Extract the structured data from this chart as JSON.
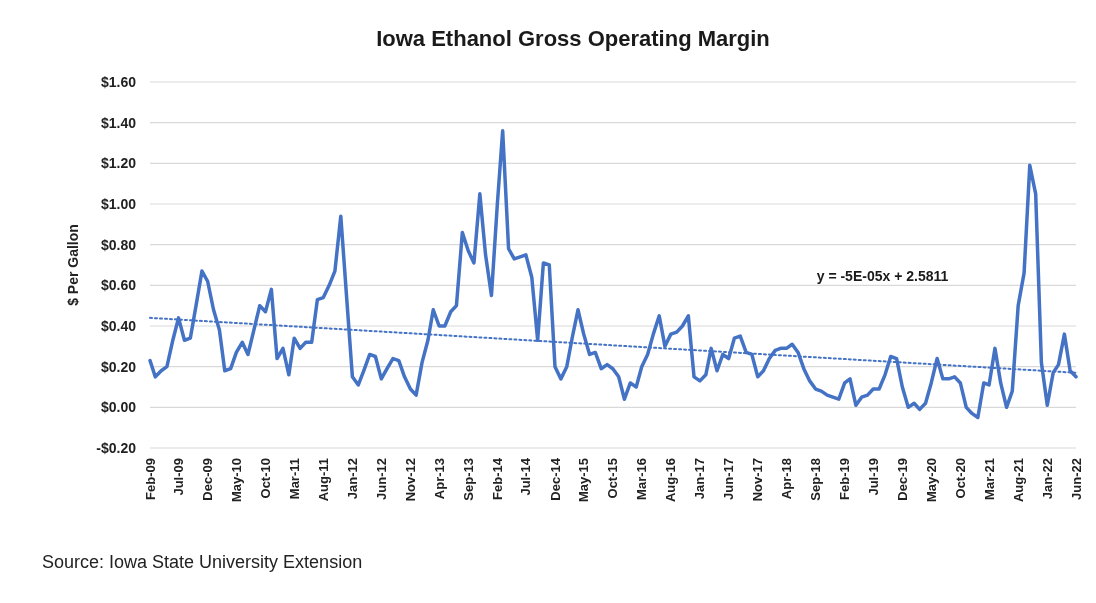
{
  "chart_data": {
    "type": "line",
    "title": "Iowa Ethanol Gross Operating Margin",
    "ylabel": "$ Per Gallon",
    "annotations": [
      "y = -5E-05x + 2.5811",
      "Source: Iowa State University Extension"
    ],
    "x": [
      "2009-02",
      "2009-03",
      "2009-04",
      "2009-05",
      "2009-06",
      "2009-07",
      "2009-08",
      "2009-09",
      "2009-10",
      "2009-11",
      "2009-12",
      "2010-01",
      "2010-02",
      "2010-03",
      "2010-04",
      "2010-05",
      "2010-06",
      "2010-07",
      "2010-08",
      "2010-09",
      "2010-10",
      "2010-11",
      "2010-12",
      "2011-01",
      "2011-02",
      "2011-03",
      "2011-04",
      "2011-05",
      "2011-06",
      "2011-07",
      "2011-08",
      "2011-09",
      "2011-10",
      "2011-11",
      "2011-12",
      "2012-01",
      "2012-02",
      "2012-03",
      "2012-04",
      "2012-05",
      "2012-06",
      "2012-07",
      "2012-08",
      "2012-09",
      "2012-10",
      "2012-11",
      "2012-12",
      "2013-01",
      "2013-02",
      "2013-03",
      "2013-04",
      "2013-05",
      "2013-06",
      "2013-07",
      "2013-08",
      "2013-09",
      "2013-10",
      "2013-11",
      "2013-12",
      "2014-01",
      "2014-02",
      "2014-03",
      "2014-04",
      "2014-05",
      "2014-06",
      "2014-07",
      "2014-08",
      "2014-09",
      "2014-10",
      "2014-11",
      "2014-12",
      "2015-01",
      "2015-02",
      "2015-03",
      "2015-04",
      "2015-05",
      "2015-06",
      "2015-07",
      "2015-08",
      "2015-09",
      "2015-10",
      "2015-11",
      "2015-12",
      "2016-01",
      "2016-02",
      "2016-03",
      "2016-04",
      "2016-05",
      "2016-06",
      "2016-07",
      "2016-08",
      "2016-09",
      "2016-10",
      "2016-11",
      "2016-12",
      "2017-01",
      "2017-02",
      "2017-03",
      "2017-04",
      "2017-05",
      "2017-06",
      "2017-07",
      "2017-08",
      "2017-09",
      "2017-10",
      "2017-11",
      "2017-12",
      "2018-01",
      "2018-02",
      "2018-03",
      "2018-04",
      "2018-05",
      "2018-06",
      "2018-07",
      "2018-08",
      "2018-09",
      "2018-10",
      "2018-11",
      "2018-12",
      "2019-01",
      "2019-02",
      "2019-03",
      "2019-04",
      "2019-05",
      "2019-06",
      "2019-07",
      "2019-08",
      "2019-09",
      "2019-10",
      "2019-11",
      "2019-12",
      "2020-01",
      "2020-02",
      "2020-03",
      "2020-04",
      "2020-05",
      "2020-06",
      "2020-07",
      "2020-08",
      "2020-09",
      "2020-10",
      "2020-11",
      "2020-12",
      "2021-01",
      "2021-02",
      "2021-03",
      "2021-04",
      "2021-05",
      "2021-06",
      "2021-07",
      "2021-08",
      "2021-09",
      "2021-10",
      "2021-11",
      "2021-12",
      "2022-01",
      "2022-02",
      "2022-03",
      "2022-04",
      "2022-05",
      "2022-06"
    ],
    "series": [
      {
        "color": "#4472c4",
        "values": [
          0.23,
          0.15,
          0.18,
          0.2,
          0.33,
          0.44,
          0.33,
          0.34,
          0.5,
          0.67,
          0.62,
          0.48,
          0.38,
          0.18,
          0.19,
          0.27,
          0.32,
          0.26,
          0.38,
          0.5,
          0.47,
          0.58,
          0.24,
          0.29,
          0.16,
          0.34,
          0.29,
          0.32,
          0.32,
          0.53,
          0.54,
          0.6,
          0.67,
          0.94,
          0.55,
          0.15,
          0.11,
          0.18,
          0.26,
          0.25,
          0.14,
          0.19,
          0.24,
          0.23,
          0.15,
          0.09,
          0.06,
          0.22,
          0.33,
          0.48,
          0.4,
          0.4,
          0.47,
          0.5,
          0.86,
          0.77,
          0.71,
          1.05,
          0.75,
          0.55,
          1.0,
          1.36,
          0.78,
          0.73,
          0.74,
          0.75,
          0.64,
          0.33,
          0.71,
          0.7,
          0.2,
          0.14,
          0.2,
          0.34,
          0.48,
          0.36,
          0.26,
          0.27,
          0.19,
          0.21,
          0.19,
          0.15,
          0.04,
          0.12,
          0.1,
          0.2,
          0.26,
          0.36,
          0.45,
          0.3,
          0.36,
          0.37,
          0.4,
          0.45,
          0.15,
          0.13,
          0.16,
          0.29,
          0.18,
          0.26,
          0.24,
          0.34,
          0.35,
          0.27,
          0.26,
          0.15,
          0.18,
          0.24,
          0.28,
          0.29,
          0.29,
          0.31,
          0.27,
          0.19,
          0.13,
          0.09,
          0.08,
          0.06,
          0.05,
          0.04,
          0.12,
          0.14,
          0.01,
          0.05,
          0.06,
          0.09,
          0.09,
          0.16,
          0.25,
          0.24,
          0.1,
          0.0,
          0.02,
          -0.01,
          0.02,
          0.12,
          0.24,
          0.14,
          0.14,
          0.15,
          0.12,
          0.0,
          -0.03,
          -0.05,
          0.12,
          0.11,
          0.29,
          0.12,
          0.0,
          0.08,
          0.5,
          0.66,
          1.19,
          1.05,
          0.22,
          0.01,
          0.17,
          0.21,
          0.36,
          0.18,
          0.15
        ]
      },
      {
        "type": "line",
        "color": "#4472c4",
        "line_style": "dotted",
        "x": [
          "2009-02",
          "2022-06"
        ],
        "values": [
          0.44,
          0.17
        ]
      }
    ],
    "xlim": [
      "2009-02",
      "2022-06"
    ],
    "xticks": [
      {
        "value": "2009-02",
        "label": "Feb-09"
      },
      {
        "value": "2009-07",
        "label": "Jul-09"
      },
      {
        "value": "2009-12",
        "label": "Dec-09"
      },
      {
        "value": "2010-05",
        "label": "May-10"
      },
      {
        "value": "2010-10",
        "label": "Oct-10"
      },
      {
        "value": "2011-03",
        "label": "Mar-11"
      },
      {
        "value": "2011-08",
        "label": "Aug-11"
      },
      {
        "value": "2012-01",
        "label": "Jan-12"
      },
      {
        "value": "2012-06",
        "label": "Jun-12"
      },
      {
        "value": "2012-11",
        "label": "Nov-12"
      },
      {
        "value": "2013-04",
        "label": "Apr-13"
      },
      {
        "value": "2013-09",
        "label": "Sep-13"
      },
      {
        "value": "2014-02",
        "label": "Feb-14"
      },
      {
        "value": "2014-07",
        "label": "Jul-14"
      },
      {
        "value": "2014-12",
        "label": "Dec-14"
      },
      {
        "value": "2015-05",
        "label": "May-15"
      },
      {
        "value": "2015-10",
        "label": "Oct-15"
      },
      {
        "value": "2016-03",
        "label": "Mar-16"
      },
      {
        "value": "2016-08",
        "label": "Aug-16"
      },
      {
        "value": "2017-01",
        "label": "Jan-17"
      },
      {
        "value": "2017-06",
        "label": "Jun-17"
      },
      {
        "value": "2017-11",
        "label": "Nov-17"
      },
      {
        "value": "2018-04",
        "label": "Apr-18"
      },
      {
        "value": "2018-09",
        "label": "Sep-18"
      },
      {
        "value": "2019-02",
        "label": "Feb-19"
      },
      {
        "value": "2019-07",
        "label": "Jul-19"
      },
      {
        "value": "2019-12",
        "label": "Dec-19"
      },
      {
        "value": "2020-05",
        "label": "May-20"
      },
      {
        "value": "2020-10",
        "label": "Oct-20"
      },
      {
        "value": "2021-03",
        "label": "Mar-21"
      },
      {
        "value": "2021-08",
        "label": "Aug-21"
      },
      {
        "value": "2022-01",
        "label": "Jan-22"
      },
      {
        "value": "2022-06",
        "label": "Jun-22"
      }
    ],
    "ylim": [
      -0.2,
      1.6
    ],
    "yticks": [
      {
        "value": -0.2,
        "label": "-$0.20"
      },
      {
        "value": 0,
        "label": "$0.00"
      },
      {
        "value": 0.2,
        "label": "$0.20"
      },
      {
        "value": 0.4,
        "label": "$0.40"
      },
      {
        "value": 0.6,
        "label": "$0.60"
      },
      {
        "value": 0.8,
        "label": "$0.80"
      },
      {
        "value": 1,
        "label": "$1.00"
      },
      {
        "value": 1.2,
        "label": "$1.20"
      },
      {
        "value": 1.4,
        "label": "$1.40"
      },
      {
        "value": 1.6,
        "label": "$1.60"
      }
    ],
    "grid": "y"
  }
}
